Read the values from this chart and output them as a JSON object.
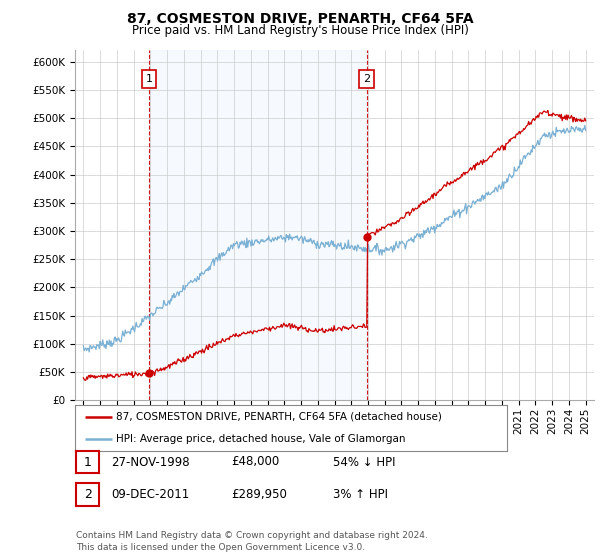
{
  "title": "87, COSMESTON DRIVE, PENARTH, CF64 5FA",
  "subtitle": "Price paid vs. HM Land Registry's House Price Index (HPI)",
  "ylabel_ticks": [
    "£0",
    "£50K",
    "£100K",
    "£150K",
    "£200K",
    "£250K",
    "£300K",
    "£350K",
    "£400K",
    "£450K",
    "£500K",
    "£550K",
    "£600K"
  ],
  "ytick_values": [
    0,
    50000,
    100000,
    150000,
    200000,
    250000,
    300000,
    350000,
    400000,
    450000,
    500000,
    550000,
    600000
  ],
  "ylim": [
    0,
    620000
  ],
  "xlim_start": 1994.5,
  "xlim_end": 2025.5,
  "red_line_color": "#cc0000",
  "blue_line_color": "#7ab0d4",
  "shade_color": "#ddeeff",
  "purchase1": {
    "date_num": 1998.92,
    "price": 48000,
    "label": "1"
  },
  "purchase2": {
    "date_num": 2011.93,
    "price": 289950,
    "label": "2"
  },
  "legend_entries": [
    "87, COSMESTON DRIVE, PENARTH, CF64 5FA (detached house)",
    "HPI: Average price, detached house, Vale of Glamorgan"
  ],
  "table_rows": [
    [
      "1",
      "27-NOV-1998",
      "£48,000",
      "54% ↓ HPI"
    ],
    [
      "2",
      "09-DEC-2011",
      "£289,950",
      "3% ↑ HPI"
    ]
  ],
  "footer": "Contains HM Land Registry data © Crown copyright and database right 2024.\nThis data is licensed under the Open Government Licence v3.0.",
  "background_color": "#ffffff",
  "plot_bg_color": "#ffffff",
  "grid_color": "#cccccc",
  "box_border_color": "#cc0000"
}
